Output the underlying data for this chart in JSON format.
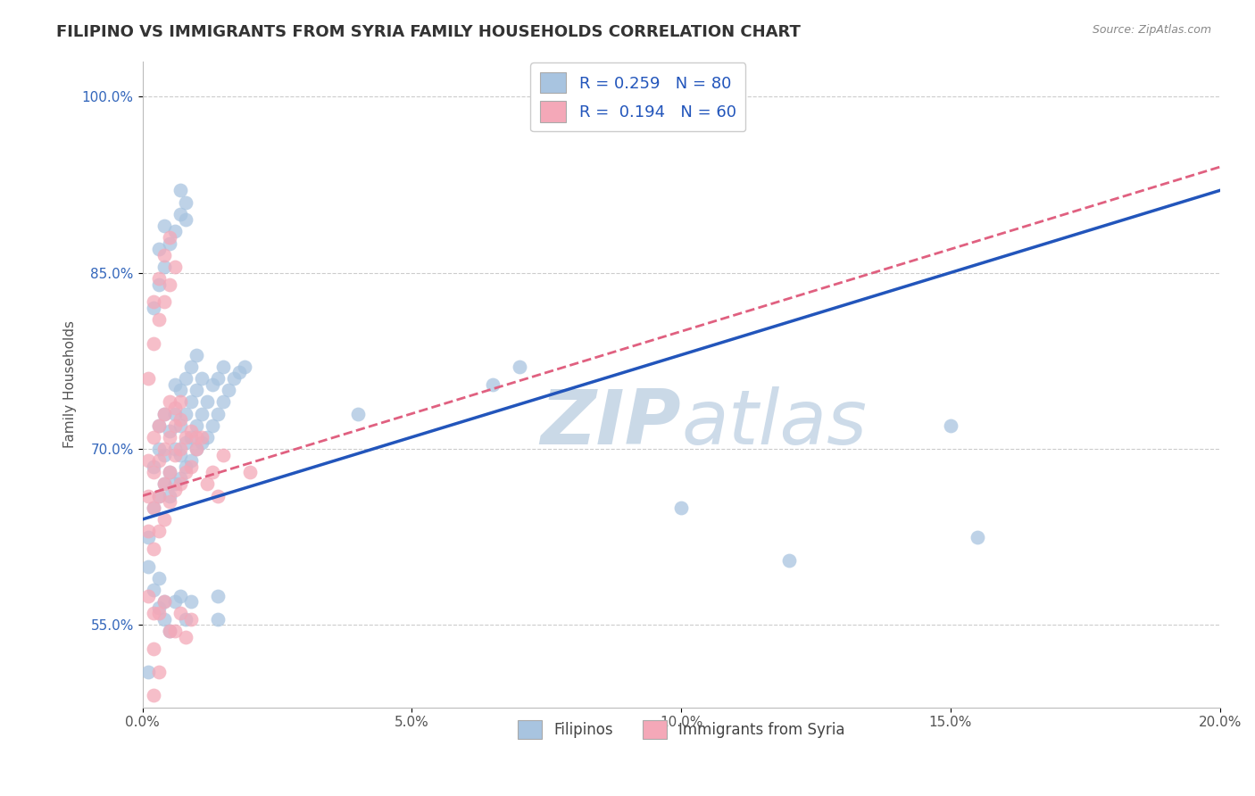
{
  "title": "FILIPINO VS IMMIGRANTS FROM SYRIA FAMILY HOUSEHOLDS CORRELATION CHART",
  "source_text": "Source: ZipAtlas.com",
  "ylabel": "Family Households",
  "xlim": [
    0.0,
    0.2
  ],
  "ylim": [
    0.48,
    1.03
  ],
  "xticks": [
    0.0,
    0.05,
    0.1,
    0.15,
    0.2
  ],
  "xtick_labels": [
    "0.0%",
    "5.0%",
    "10.0%",
    "15.0%",
    "20.0%"
  ],
  "yticks": [
    0.55,
    0.7,
    0.85,
    1.0
  ],
  "ytick_labels": [
    "55.0%",
    "70.0%",
    "85.0%",
    "100.0%"
  ],
  "legend1_label": "Filipinos",
  "legend2_label": "Immigrants from Syria",
  "R1": 0.259,
  "N1": 80,
  "R2": 0.194,
  "N2": 60,
  "blue_color": "#a8c4e0",
  "pink_color": "#f4a8b8",
  "blue_line_color": "#2255bb",
  "pink_line_color": "#e06080",
  "watermark_color": "#c8d8ea",
  "title_fontsize": 13,
  "axis_label_fontsize": 11,
  "tick_fontsize": 11,
  "blue_trend": [
    0.0,
    0.64,
    0.2,
    0.92
  ],
  "pink_trend": [
    0.0,
    0.66,
    0.2,
    0.94
  ],
  "blue_scatter": [
    [
      0.001,
      0.625
    ],
    [
      0.002,
      0.65
    ],
    [
      0.002,
      0.685
    ],
    [
      0.003,
      0.66
    ],
    [
      0.003,
      0.7
    ],
    [
      0.003,
      0.72
    ],
    [
      0.004,
      0.67
    ],
    [
      0.004,
      0.695
    ],
    [
      0.004,
      0.73
    ],
    [
      0.005,
      0.66
    ],
    [
      0.005,
      0.68
    ],
    [
      0.005,
      0.715
    ],
    [
      0.006,
      0.67
    ],
    [
      0.006,
      0.7
    ],
    [
      0.006,
      0.73
    ],
    [
      0.006,
      0.755
    ],
    [
      0.007,
      0.675
    ],
    [
      0.007,
      0.695
    ],
    [
      0.007,
      0.72
    ],
    [
      0.007,
      0.75
    ],
    [
      0.008,
      0.685
    ],
    [
      0.008,
      0.705
    ],
    [
      0.008,
      0.73
    ],
    [
      0.008,
      0.76
    ],
    [
      0.009,
      0.69
    ],
    [
      0.009,
      0.71
    ],
    [
      0.009,
      0.74
    ],
    [
      0.009,
      0.77
    ],
    [
      0.01,
      0.7
    ],
    [
      0.01,
      0.72
    ],
    [
      0.01,
      0.75
    ],
    [
      0.01,
      0.78
    ],
    [
      0.011,
      0.705
    ],
    [
      0.011,
      0.73
    ],
    [
      0.011,
      0.76
    ],
    [
      0.012,
      0.71
    ],
    [
      0.012,
      0.74
    ],
    [
      0.013,
      0.72
    ],
    [
      0.013,
      0.755
    ],
    [
      0.014,
      0.73
    ],
    [
      0.014,
      0.76
    ],
    [
      0.015,
      0.74
    ],
    [
      0.015,
      0.77
    ],
    [
      0.016,
      0.75
    ],
    [
      0.017,
      0.76
    ],
    [
      0.018,
      0.765
    ],
    [
      0.019,
      0.77
    ],
    [
      0.002,
      0.82
    ],
    [
      0.003,
      0.84
    ],
    [
      0.003,
      0.87
    ],
    [
      0.004,
      0.855
    ],
    [
      0.004,
      0.89
    ],
    [
      0.005,
      0.875
    ],
    [
      0.006,
      0.885
    ],
    [
      0.007,
      0.9
    ],
    [
      0.007,
      0.92
    ],
    [
      0.008,
      0.895
    ],
    [
      0.008,
      0.91
    ],
    [
      0.001,
      0.6
    ],
    [
      0.002,
      0.58
    ],
    [
      0.003,
      0.565
    ],
    [
      0.003,
      0.59
    ],
    [
      0.004,
      0.555
    ],
    [
      0.004,
      0.57
    ],
    [
      0.005,
      0.545
    ],
    [
      0.006,
      0.57
    ],
    [
      0.007,
      0.575
    ],
    [
      0.008,
      0.555
    ],
    [
      0.009,
      0.57
    ],
    [
      0.001,
      0.51
    ],
    [
      0.04,
      0.73
    ],
    [
      0.065,
      0.755
    ],
    [
      0.07,
      0.77
    ],
    [
      0.1,
      0.65
    ],
    [
      0.12,
      0.605
    ],
    [
      0.15,
      0.72
    ],
    [
      0.155,
      0.625
    ],
    [
      0.014,
      0.555
    ],
    [
      0.014,
      0.575
    ]
  ],
  "pink_scatter": [
    [
      0.001,
      0.63
    ],
    [
      0.001,
      0.66
    ],
    [
      0.001,
      0.69
    ],
    [
      0.002,
      0.615
    ],
    [
      0.002,
      0.65
    ],
    [
      0.002,
      0.68
    ],
    [
      0.002,
      0.71
    ],
    [
      0.003,
      0.63
    ],
    [
      0.003,
      0.66
    ],
    [
      0.003,
      0.69
    ],
    [
      0.003,
      0.72
    ],
    [
      0.004,
      0.64
    ],
    [
      0.004,
      0.67
    ],
    [
      0.004,
      0.7
    ],
    [
      0.004,
      0.73
    ],
    [
      0.005,
      0.655
    ],
    [
      0.005,
      0.68
    ],
    [
      0.005,
      0.71
    ],
    [
      0.005,
      0.74
    ],
    [
      0.006,
      0.665
    ],
    [
      0.006,
      0.695
    ],
    [
      0.006,
      0.72
    ],
    [
      0.007,
      0.67
    ],
    [
      0.007,
      0.7
    ],
    [
      0.007,
      0.725
    ],
    [
      0.008,
      0.68
    ],
    [
      0.008,
      0.71
    ],
    [
      0.009,
      0.685
    ],
    [
      0.009,
      0.715
    ],
    [
      0.01,
      0.7
    ],
    [
      0.011,
      0.71
    ],
    [
      0.001,
      0.76
    ],
    [
      0.002,
      0.79
    ],
    [
      0.002,
      0.825
    ],
    [
      0.003,
      0.81
    ],
    [
      0.003,
      0.845
    ],
    [
      0.004,
      0.825
    ],
    [
      0.004,
      0.865
    ],
    [
      0.005,
      0.84
    ],
    [
      0.005,
      0.88
    ],
    [
      0.006,
      0.855
    ],
    [
      0.001,
      0.575
    ],
    [
      0.002,
      0.56
    ],
    [
      0.002,
      0.53
    ],
    [
      0.003,
      0.56
    ],
    [
      0.004,
      0.57
    ],
    [
      0.005,
      0.545
    ],
    [
      0.006,
      0.545
    ],
    [
      0.007,
      0.56
    ],
    [
      0.008,
      0.54
    ],
    [
      0.009,
      0.555
    ],
    [
      0.015,
      0.695
    ],
    [
      0.02,
      0.68
    ],
    [
      0.013,
      0.68
    ],
    [
      0.014,
      0.66
    ],
    [
      0.012,
      0.67
    ],
    [
      0.01,
      0.71
    ],
    [
      0.006,
      0.735
    ],
    [
      0.007,
      0.74
    ],
    [
      0.002,
      0.49
    ],
    [
      0.003,
      0.51
    ]
  ]
}
